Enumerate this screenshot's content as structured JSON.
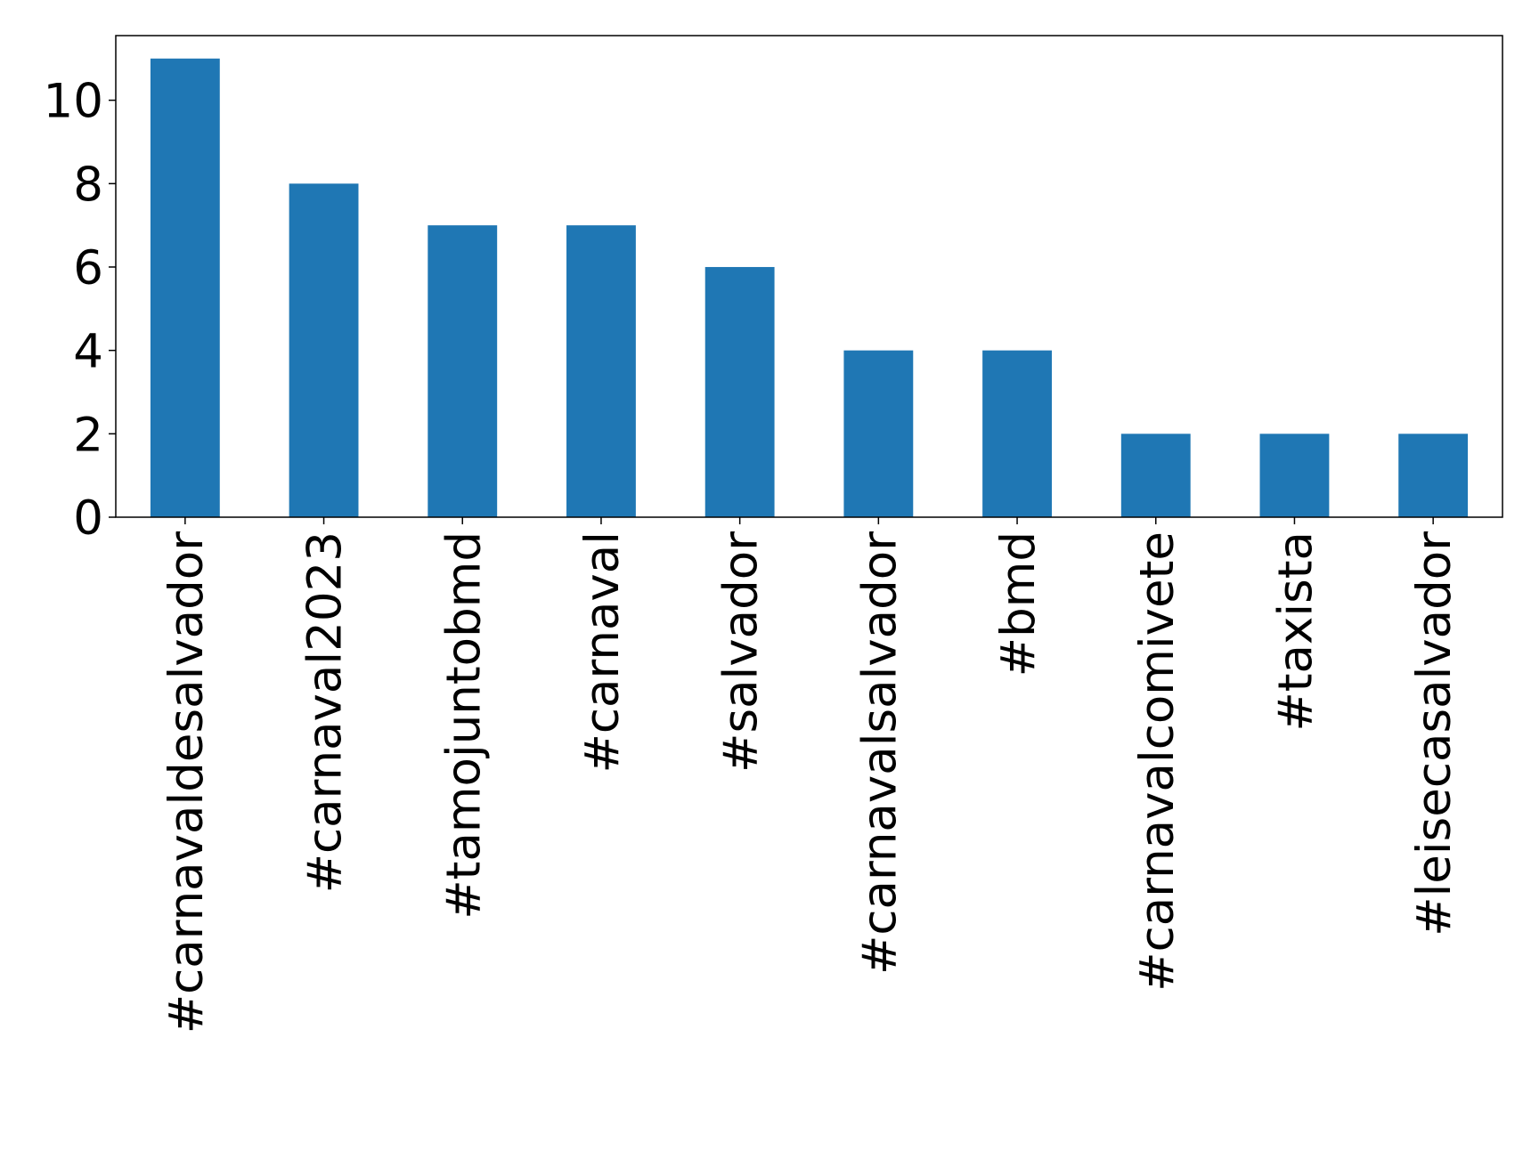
{
  "chart_data": {
    "type": "bar",
    "categories": [
      "#carnavaldesalvador",
      "#carnaval2023",
      "#tamojuntobmd",
      "#carnaval",
      "#salvador",
      "#carnavalsalvador",
      "#bmd",
      "#carnavalcomivete",
      "#taxista",
      "#leisecasalvador"
    ],
    "values": [
      11,
      8,
      7,
      7,
      6,
      4,
      4,
      2,
      2,
      2
    ],
    "color": "#1f77b4",
    "ylim": [
      0,
      11.55
    ],
    "yticks": [
      0,
      2,
      4,
      6,
      8,
      10
    ],
    "grid": false
  }
}
